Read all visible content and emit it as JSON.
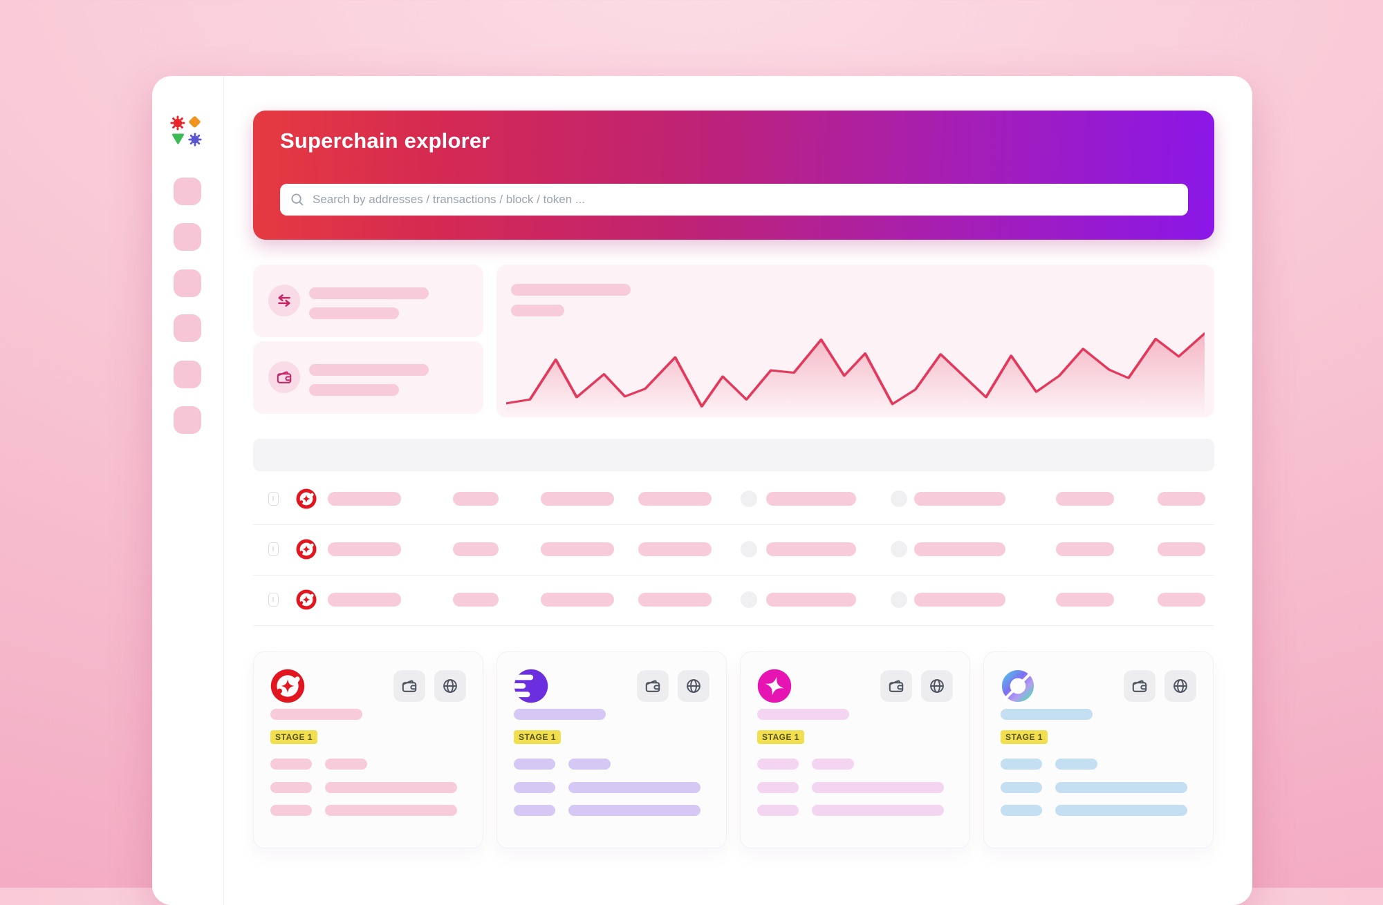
{
  "app": {
    "title": "Superchain explorer",
    "search_placeholder": "Search by addresses / transactions / block / token ..."
  },
  "theme": {
    "page_background": "#f5b9cb",
    "banner_gradient": [
      "#e63a40",
      "#c02372",
      "#8b17e8"
    ],
    "panel_pink": "#fdf2f6",
    "skeleton_pink": "#f8cbda",
    "table_header_gray": "#f4f4f6",
    "badge_bg": "#f1df4f",
    "badge_text_color": "#55511e",
    "chart_line_color": "#e23a5c"
  },
  "sidebar": {
    "logo": "four-shapes-logo (red gear, orange diamond, green triangle, indigo gear)",
    "nav_item_count": 6
  },
  "stats": [
    {
      "icon": "swap-icon"
    },
    {
      "icon": "wallet-icon"
    }
  ],
  "chart_data": {
    "type": "area",
    "title": "",
    "xlabel": "",
    "ylabel": "",
    "notes": "skeleton preview chart; no axis ticks, labels or legend visible; values normalized 0-100",
    "line_color": "#e23a5c",
    "points": [
      [
        0,
        9
      ],
      [
        3.4,
        14
      ],
      [
        7.1,
        66
      ],
      [
        10.1,
        17
      ],
      [
        14,
        47
      ],
      [
        17,
        18
      ],
      [
        19.9,
        28
      ],
      [
        24.2,
        69
      ],
      [
        28,
        5
      ],
      [
        31,
        44
      ],
      [
        34.4,
        14
      ],
      [
        37.9,
        52
      ],
      [
        41.2,
        49
      ],
      [
        45.1,
        92
      ],
      [
        48.4,
        45
      ],
      [
        51.4,
        74
      ],
      [
        55.3,
        8
      ],
      [
        58.6,
        27
      ],
      [
        62.2,
        73
      ],
      [
        68.7,
        17
      ],
      [
        72.3,
        71
      ],
      [
        75.9,
        24
      ],
      [
        79.2,
        45
      ],
      [
        82.6,
        80
      ],
      [
        86.3,
        53
      ],
      [
        89.1,
        42
      ],
      [
        93,
        93
      ],
      [
        96.3,
        70
      ],
      [
        100,
        100
      ]
    ]
  },
  "table": {
    "header_text": "",
    "row_count": 3,
    "row_logo": "superchain-red-swirl-logo"
  },
  "cards": [
    {
      "logo": "red-swirl-chain-logo",
      "stage_label": "STAGE 1",
      "skeleton_color": "#f8cbda",
      "logo_color": "#e2161f"
    },
    {
      "logo": "purple-bars-chain-logo",
      "stage_label": "STAGE 1",
      "skeleton_color": "#d6c8f4",
      "logo_color": "#6c2fe0"
    },
    {
      "logo": "magenta-star-chain-logo",
      "stage_label": "STAGE 1",
      "skeleton_color": "#f4d5f1",
      "logo_color": "#e514b2"
    },
    {
      "logo": "iridescent-ring-chain-logo",
      "stage_label": "STAGE 1",
      "skeleton_color": "#c4dff2",
      "logo_color": "#57b6e8"
    }
  ]
}
